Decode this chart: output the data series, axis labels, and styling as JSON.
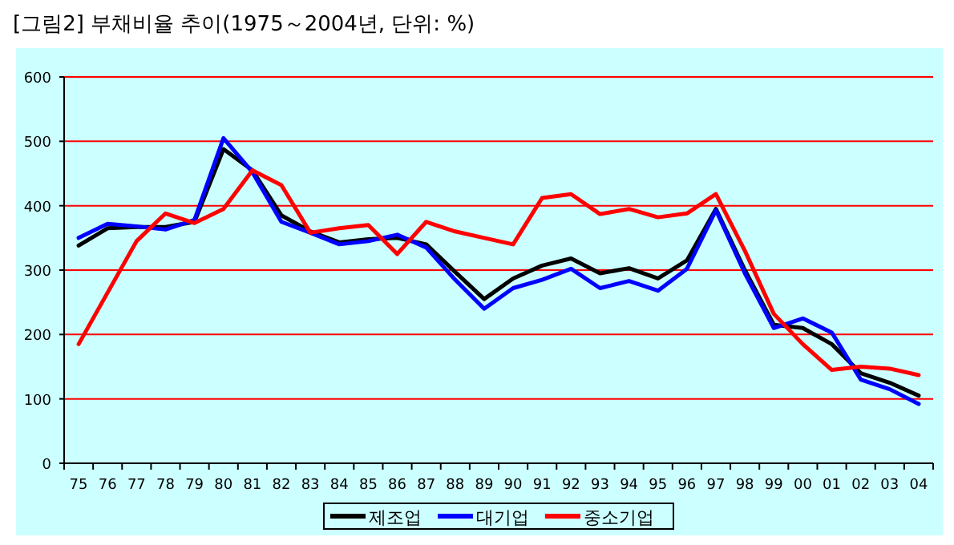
{
  "chart_data": {
    "type": "line",
    "title": "[그림2] 부채비율 추이(1975～2004년, 단위: %)",
    "categories": [
      "75",
      "76",
      "77",
      "78",
      "79",
      "80",
      "81",
      "82",
      "83",
      "84",
      "85",
      "86",
      "87",
      "88",
      "89",
      "90",
      "91",
      "92",
      "93",
      "94",
      "95",
      "96",
      "97",
      "98",
      "99",
      "00",
      "01",
      "02",
      "03",
      "04"
    ],
    "series": [
      {
        "name": "제조업",
        "color": "#000000",
        "values": [
          338,
          365,
          367,
          367,
          375,
          488,
          455,
          385,
          360,
          343,
          348,
          350,
          340,
          297,
          255,
          287,
          307,
          318,
          295,
          303,
          287,
          315,
          395,
          300,
          215,
          210,
          185,
          140,
          125,
          105
        ]
      },
      {
        "name": "대기업",
        "color": "#0000ff",
        "values": [
          350,
          372,
          368,
          363,
          378,
          505,
          452,
          375,
          358,
          340,
          345,
          355,
          335,
          285,
          240,
          272,
          285,
          302,
          272,
          283,
          268,
          302,
          393,
          295,
          210,
          225,
          203,
          130,
          115,
          92
        ]
      },
      {
        "name": "중소기업",
        "color": "#ff0000",
        "values": [
          185,
          265,
          345,
          388,
          373,
          395,
          455,
          432,
          358,
          365,
          370,
          325,
          375,
          360,
          350,
          340,
          412,
          418,
          387,
          395,
          382,
          388,
          418,
          330,
          232,
          185,
          145,
          150,
          147,
          137
        ]
      }
    ],
    "ylim": [
      0,
      600
    ],
    "yticks": [
      0,
      100,
      200,
      300,
      400,
      500,
      600
    ],
    "grid": "y",
    "legend": "bottom",
    "marker": "none",
    "line_style": "solid"
  }
}
